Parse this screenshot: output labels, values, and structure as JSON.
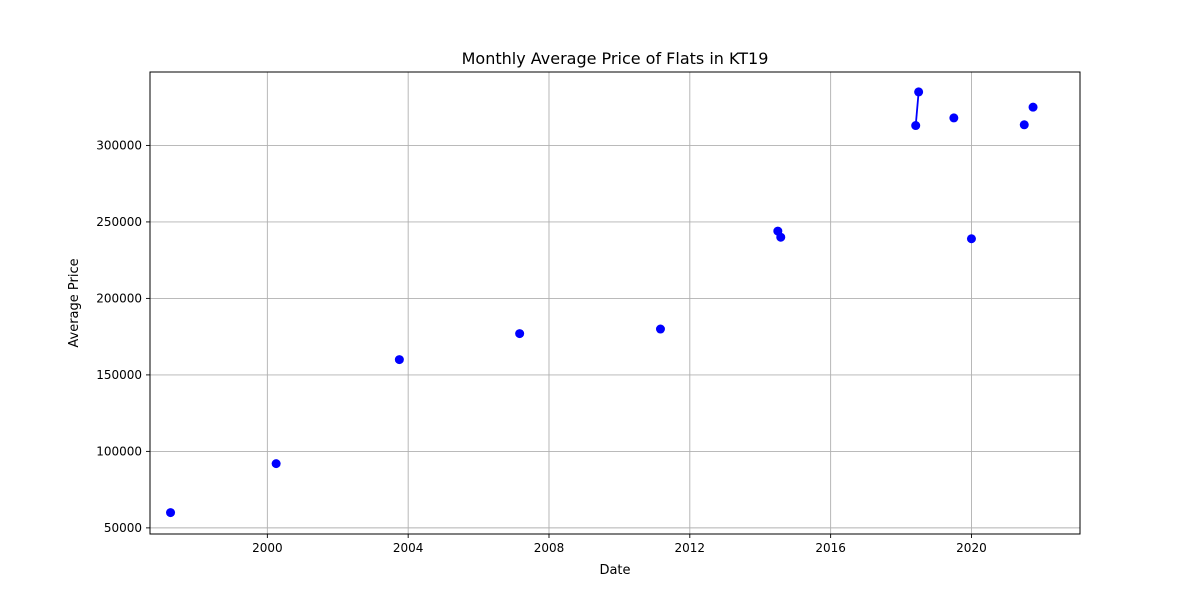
{
  "chart_data": {
    "type": "line",
    "title": "Monthly Average Price of Flats in KT19",
    "xlabel": "Date",
    "ylabel": "Average Price",
    "x_ticks": [
      "2000",
      "2004",
      "2008",
      "2012",
      "2016",
      "2020"
    ],
    "y_ticks": [
      50000,
      100000,
      150000,
      200000,
      250000,
      300000
    ],
    "xlim": [
      "1996-09",
      "2023-02"
    ],
    "ylim": [
      46000,
      348000
    ],
    "grid": true,
    "series": [
      {
        "color": "#0000ff",
        "marker": "circle",
        "points": [
          {
            "x": "1997-04",
            "y": 60000
          },
          {
            "x": "2000-04",
            "y": 92000
          },
          {
            "x": "2003-10",
            "y": 160000
          },
          {
            "x": "2007-03",
            "y": 177000
          },
          {
            "x": "2011-03",
            "y": 180000
          },
          {
            "x": "2014-07",
            "y": 244000
          },
          {
            "x": "2014-08",
            "y": 240000
          },
          {
            "x": "2018-06",
            "y": 313000
          },
          {
            "x": "2018-07",
            "y": 335000
          },
          {
            "x": "2019-07",
            "y": 318000
          },
          {
            "x": "2020-01",
            "y": 239000
          },
          {
            "x": "2021-07",
            "y": 313500
          },
          {
            "x": "2021-10",
            "y": 325000
          }
        ]
      }
    ]
  }
}
